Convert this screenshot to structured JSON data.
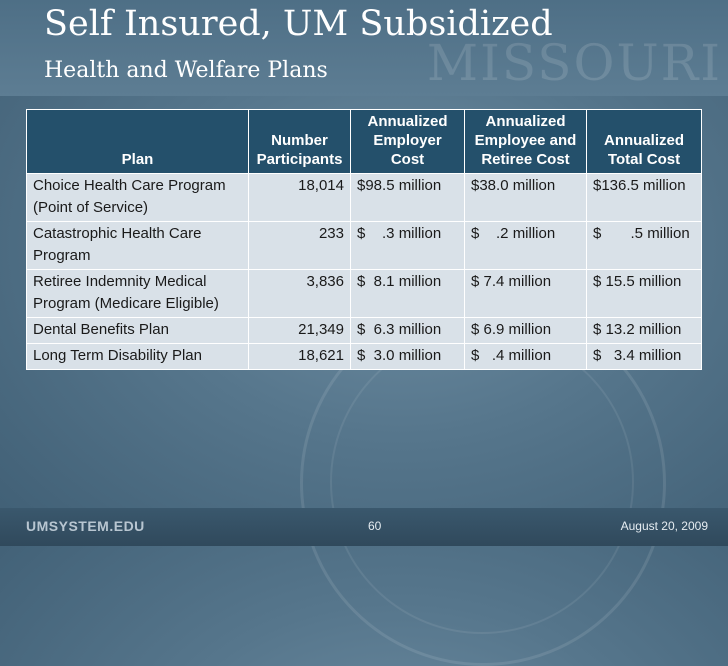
{
  "slide": {
    "title": "Self Insured, UM Subsidized",
    "subtitle": "Health and Welfare Plans",
    "watermark": "MISSOURI"
  },
  "table": {
    "headers": [
      "Plan",
      "Number Participants",
      "Annualized Employer Cost",
      "Annualized Employee and Retiree Cost",
      "Annualized Total Cost"
    ],
    "rows": [
      [
        "Choice Health Care Program (Point of Service)",
        "18,014",
        "$98.5 million",
        "$38.0 million",
        "$136.5 million"
      ],
      [
        "Catastrophic  Health Care Program",
        "233",
        "$    .3 million",
        "$    .2 million",
        "$       .5 million"
      ],
      [
        "Retiree Indemnity Medical Program (Medicare Eligible)",
        "3,836",
        "$  8.1 million",
        "$ 7.4 million",
        "$ 15.5 million"
      ],
      [
        "Dental Benefits Plan",
        "21,349",
        "$  6.3 million",
        "$ 6.9 million",
        "$ 13.2 million"
      ],
      [
        "Long Term Disability Plan",
        "18,621",
        "$  3.0 million",
        "$   .4 million",
        "$   3.4 million"
      ]
    ]
  },
  "footer": {
    "site": "UMSYSTEM.EDU",
    "page": "60",
    "date": "August 20, 2009"
  }
}
